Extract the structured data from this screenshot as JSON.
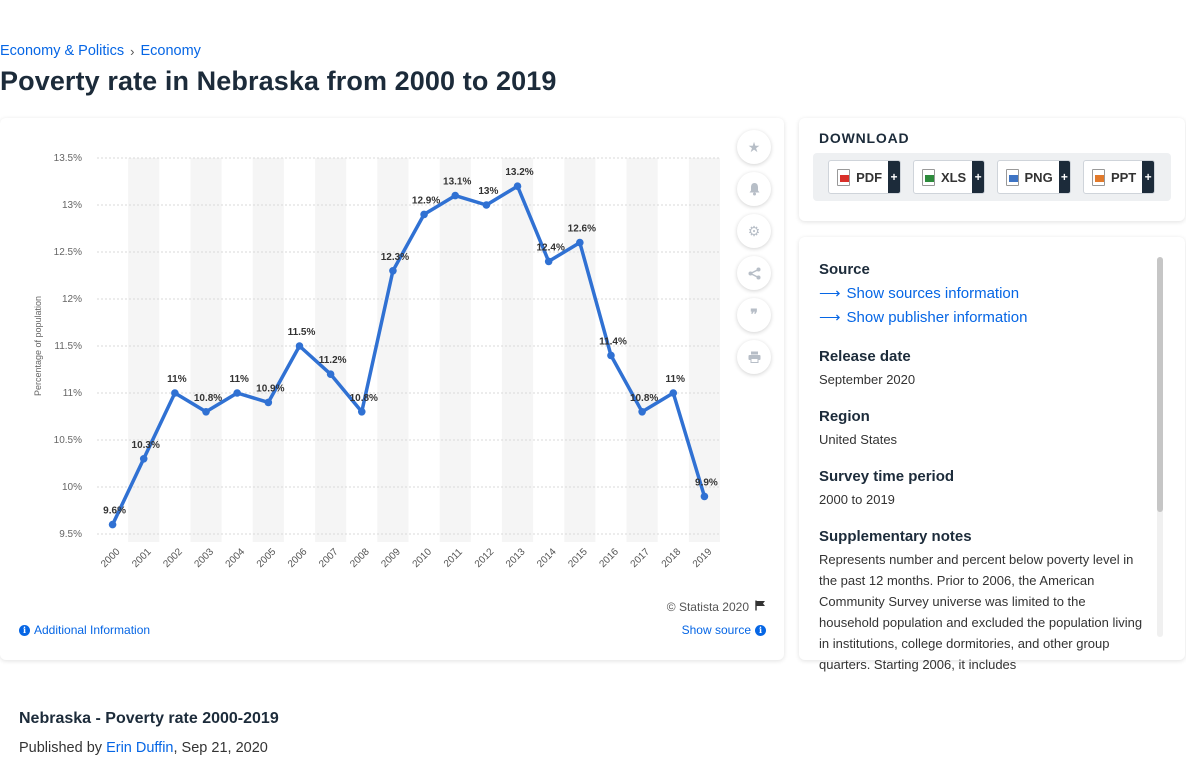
{
  "breadcrumb": {
    "items": [
      "Economy & Politics",
      "Economy"
    ],
    "separator": "›"
  },
  "page_title": "Poverty rate in Nebraska from 2000 to 2019",
  "chart_data": {
    "type": "line",
    "categories": [
      "2000",
      "2001",
      "2002",
      "2003",
      "2004",
      "2005",
      "2006",
      "2007",
      "2008",
      "2009",
      "2010",
      "2011",
      "2012",
      "2013",
      "2014",
      "2015",
      "2016",
      "2017",
      "2018",
      "2019"
    ],
    "values": [
      9.6,
      10.3,
      11,
      10.8,
      11,
      10.9,
      11.5,
      11.2,
      10.8,
      12.3,
      12.9,
      13.1,
      13,
      13.2,
      12.4,
      12.6,
      11.4,
      10.8,
      11,
      9.9
    ],
    "data_labels": [
      "9.6%",
      "10.3%",
      "11%",
      "10.8%",
      "11%",
      "10.9%",
      "11.5%",
      "11.2%",
      "10.8%",
      "12.3%",
      "12.9%",
      "13.1%",
      "13%",
      "13.2%",
      "12.4%",
      "12.6%",
      "11.4%",
      "10.8%",
      "11%",
      "9.9%"
    ],
    "ylabel": "Percentage of population",
    "xlabel": "",
    "ylim": [
      9.5,
      13.5
    ],
    "yticks": [
      9.5,
      10,
      10.5,
      11,
      11.5,
      12,
      12.5,
      13,
      13.5
    ],
    "ytick_labels": [
      "9.5%",
      "10%",
      "10.5%",
      "11%",
      "11.5%",
      "12%",
      "12.5%",
      "13%",
      "13.5%"
    ],
    "line_color": "#3071d3",
    "grid": true
  },
  "chart_footer": {
    "copyright": "© Statista 2020",
    "additional_info": "Additional Information",
    "show_source": "Show source"
  },
  "tools": [
    "star-icon",
    "bell-icon",
    "gear-icon",
    "share-icon",
    "quote-icon",
    "print-icon"
  ],
  "download": {
    "title": "DOWNLOAD",
    "formats": [
      {
        "label": "PDF",
        "icon": "pdf-file-icon",
        "plus": "+"
      },
      {
        "label": "XLS",
        "icon": "xls-file-icon",
        "plus": "+"
      },
      {
        "label": "PNG",
        "icon": "png-file-icon",
        "plus": "+"
      },
      {
        "label": "PPT",
        "icon": "ppt-file-icon",
        "plus": "+"
      }
    ]
  },
  "info": {
    "source_heading": "Source",
    "show_sources": "Show sources information",
    "show_publisher": "Show publisher information",
    "release_heading": "Release date",
    "release_value": "September 2020",
    "region_heading": "Region",
    "region_value": "United States",
    "survey_heading": "Survey time period",
    "survey_value": "2000 to 2019",
    "notes_heading": "Supplementary notes",
    "notes_value": "Represents number and percent below poverty level in the past 12 months. Prior to 2006, the American Community Survey universe was limited to the household population and excluded the population living in institutions, college dormitories, and other group quarters. Starting 2006, it includes"
  },
  "publication": {
    "title": "Nebraska - Poverty rate 2000-2019",
    "published_by_prefix": "Published by",
    "author": "Erin Duffin",
    "date": ", Sep 21, 2020"
  }
}
